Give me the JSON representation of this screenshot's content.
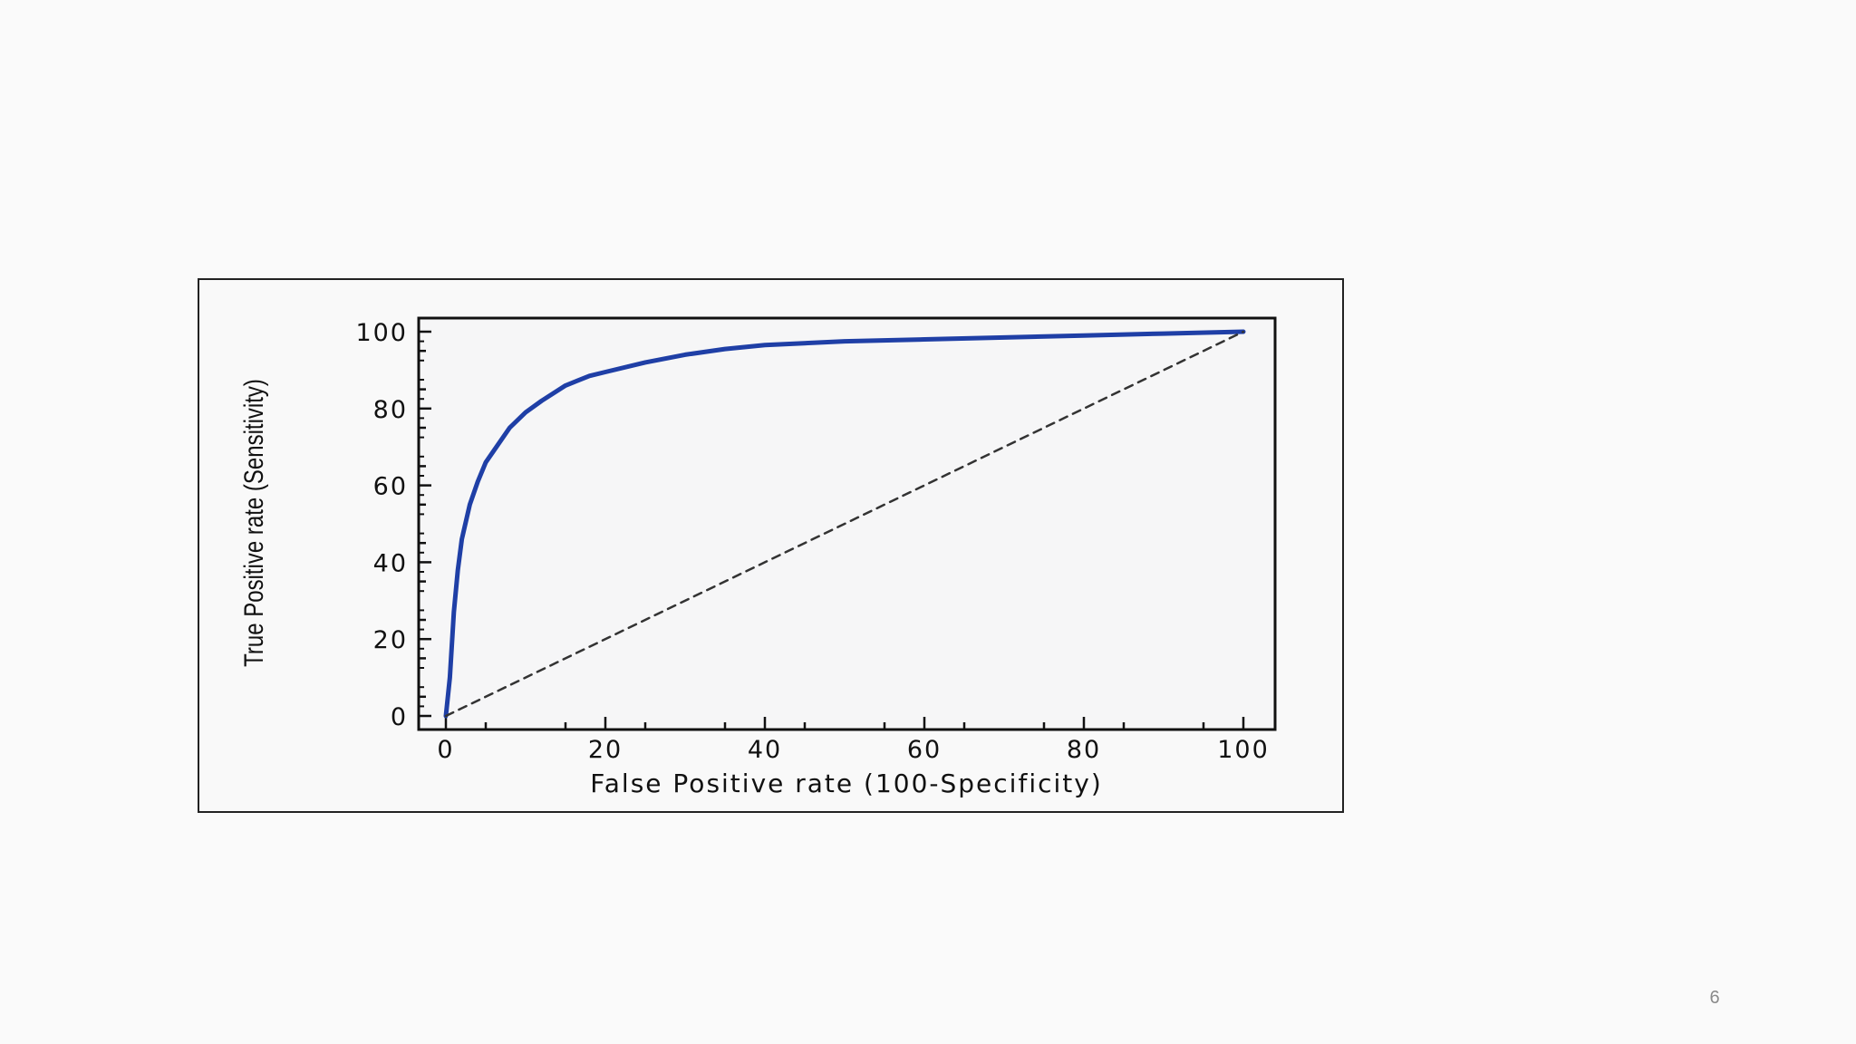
{
  "slide": {
    "number": "6"
  },
  "chart_data": {
    "type": "line",
    "xlabel": "False Positive rate (100-Specificity)",
    "ylabel": "True Positive rate (Sensitivity)",
    "xlim": [
      0,
      100
    ],
    "ylim": [
      0,
      100
    ],
    "x_ticks": [
      "0",
      "20",
      "40",
      "60",
      "80",
      "100"
    ],
    "y_ticks": [
      "0",
      "20",
      "40",
      "60",
      "80",
      "100"
    ],
    "grid": false,
    "legend": "none",
    "series": [
      {
        "color": "#1f3fa6",
        "style": "solid",
        "x": [
          0,
          0.5,
          1,
          1.5,
          2,
          3,
          4,
          5,
          6,
          8,
          10,
          12,
          15,
          18,
          20,
          25,
          30,
          35,
          40,
          50,
          60,
          70,
          80,
          90,
          100
        ],
        "y": [
          0,
          10,
          27,
          38,
          46,
          55,
          61,
          66,
          69,
          75,
          79,
          82,
          86,
          88.5,
          89.5,
          92,
          94,
          95.5,
          96.5,
          97.5,
          98,
          98.5,
          99,
          99.5,
          100
        ]
      },
      {
        "color": "#333333",
        "style": "dashed",
        "x": [
          0,
          100
        ],
        "y": [
          0,
          100
        ]
      }
    ]
  }
}
